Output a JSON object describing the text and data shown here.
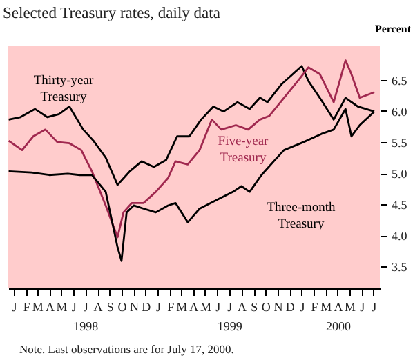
{
  "chart_data": {
    "type": "line",
    "title": "Selected Treasury rates, daily data",
    "ylabel": "Percent",
    "annotations": [
      "Note. Last observations are for July 17, 2000."
    ],
    "xlim": [
      "1998-01-01",
      "2000-07-31"
    ],
    "ylim": [
      3.15,
      7.05
    ],
    "yticks": [
      3.5,
      {
        "value": 4,
        "label": "4.0"
      },
      4.5,
      {
        "value": 5,
        "label": "5.0"
      },
      5.5,
      {
        "value": 6,
        "label": "6.0"
      },
      6.5
    ],
    "xticks": [
      {
        "value": "1998-01-15",
        "label": "J"
      },
      {
        "value": "1998-02-15",
        "label": "F"
      },
      {
        "value": "1998-03-15",
        "label": "M"
      },
      {
        "value": "1998-04-15",
        "label": "A"
      },
      {
        "value": "1998-05-15",
        "label": "M"
      },
      {
        "value": "1998-06-15",
        "label": "J"
      },
      {
        "value": "1998-07-15",
        "label": "J\n1998"
      },
      {
        "value": "1998-08-15",
        "label": "A"
      },
      {
        "value": "1998-09-15",
        "label": "S"
      },
      {
        "value": "1998-10-15",
        "label": "O"
      },
      {
        "value": "1998-11-15",
        "label": "N"
      },
      {
        "value": "1998-12-15",
        "label": "D"
      },
      {
        "value": "1999-01-15",
        "label": "J"
      },
      {
        "value": "1999-02-15",
        "label": "F"
      },
      {
        "value": "1999-03-15",
        "label": "M"
      },
      {
        "value": "1999-04-15",
        "label": "A"
      },
      {
        "value": "1999-05-15",
        "label": "M"
      },
      {
        "value": "1999-06-15",
        "label": "J"
      },
      {
        "value": "1999-07-15",
        "label": "J\n1999"
      },
      {
        "value": "1999-08-15",
        "label": "A"
      },
      {
        "value": "1999-09-15",
        "label": "S"
      },
      {
        "value": "1999-10-15",
        "label": "O"
      },
      {
        "value": "1999-11-15",
        "label": "N"
      },
      {
        "value": "1999-12-15",
        "label": "D"
      },
      {
        "value": "2000-01-15",
        "label": "J"
      },
      {
        "value": "2000-02-15",
        "label": "F"
      },
      {
        "value": "2000-03-15",
        "label": "M"
      },
      {
        "value": "2000-04-15",
        "label": "A\n2000"
      },
      {
        "value": "2000-05-15",
        "label": "M"
      },
      {
        "value": "2000-06-15",
        "label": "J"
      },
      {
        "value": "2000-07-15",
        "label": "J"
      }
    ],
    "grid": false,
    "legend": false,
    "marker": "none",
    "line_style": "solid",
    "series": [
      {
        "name": "Thirty-year Treasury",
        "color": "#000000",
        "x": [
          "1998-01-02",
          "1998-02-01",
          "1998-03-10",
          "1998-04-10",
          "1998-05-10",
          "1998-06-05",
          "1998-07-10",
          "1998-08-05",
          "1998-09-05",
          "1998-10-05",
          "1998-11-05",
          "1998-12-05",
          "1999-01-05",
          "1999-02-05",
          "1999-03-05",
          "1999-04-05",
          "1999-05-05",
          "1999-06-05",
          "1999-07-01",
          "1999-08-05",
          "1999-09-05",
          "1999-10-01",
          "1999-10-20",
          "1999-11-25",
          "2000-01-15",
          "2000-02-01",
          "2000-03-05",
          "2000-04-05",
          "2000-05-05",
          "2000-06-05",
          "2000-07-17"
        ],
        "values": [
          5.86,
          5.9,
          6.03,
          5.9,
          5.95,
          6.07,
          5.7,
          5.52,
          5.25,
          4.81,
          5.03,
          5.19,
          5.1,
          5.21,
          5.59,
          5.59,
          5.86,
          6.07,
          5.99,
          6.14,
          6.03,
          6.21,
          6.14,
          6.43,
          6.72,
          6.48,
          6.17,
          5.86,
          6.21,
          6.07,
          5.99
        ]
      },
      {
        "name": "Five-year Treasury",
        "color": "#a0284f",
        "x": [
          "1998-01-02",
          "1998-02-05",
          "1998-03-05",
          "1998-04-05",
          "1998-05-05",
          "1998-06-05",
          "1998-07-05",
          "1998-08-01",
          "1998-09-05",
          "1998-10-05",
          "1998-10-20",
          "1998-11-10",
          "1998-12-10",
          "1999-01-10",
          "1999-02-10",
          "1999-03-01",
          "1999-04-01",
          "1999-05-01",
          "1999-06-01",
          "1999-06-25",
          "1999-08-01",
          "1999-09-01",
          "1999-10-01",
          "1999-10-25",
          "1999-12-01",
          "2000-01-10",
          "2000-02-01",
          "2000-03-01",
          "2000-04-05",
          "2000-05-05",
          "2000-05-20",
          "2000-06-10",
          "2000-07-17"
        ],
        "values": [
          5.52,
          5.37,
          5.59,
          5.7,
          5.5,
          5.48,
          5.37,
          5.03,
          4.48,
          3.97,
          4.37,
          4.52,
          4.52,
          4.7,
          4.92,
          5.19,
          5.14,
          5.37,
          5.86,
          5.7,
          5.77,
          5.7,
          5.86,
          5.92,
          6.21,
          6.52,
          6.7,
          6.59,
          6.14,
          6.81,
          6.59,
          6.21,
          6.3
        ]
      },
      {
        "name": "Three-month Treasury",
        "color": "#000000",
        "x": [
          "1998-01-02",
          "1998-03-01",
          "1998-04-15",
          "1998-06-01",
          "1998-07-01",
          "1998-08-01",
          "1998-09-05",
          "1998-10-05",
          "1998-10-15",
          "1998-10-28",
          "1998-11-15",
          "1998-12-10",
          "1999-01-10",
          "1999-02-10",
          "1999-03-01",
          "1999-04-01",
          "1999-05-01",
          "1999-06-20",
          "1999-07-25",
          "1999-08-15",
          "1999-09-05",
          "1999-10-05",
          "1999-11-05",
          "1999-12-01",
          "2000-01-20",
          "2000-03-05",
          "2000-04-05",
          "2000-05-05",
          "2000-05-20",
          "2000-06-10",
          "2000-07-17"
        ],
        "values": [
          5.03,
          5.01,
          4.97,
          4.99,
          4.97,
          4.97,
          4.7,
          3.81,
          3.59,
          4.37,
          4.48,
          4.43,
          4.37,
          4.48,
          4.52,
          4.21,
          4.43,
          4.59,
          4.7,
          4.79,
          4.7,
          4.97,
          5.19,
          5.37,
          5.5,
          5.63,
          5.7,
          6.03,
          5.59,
          5.77,
          5.99
        ]
      }
    ]
  }
}
